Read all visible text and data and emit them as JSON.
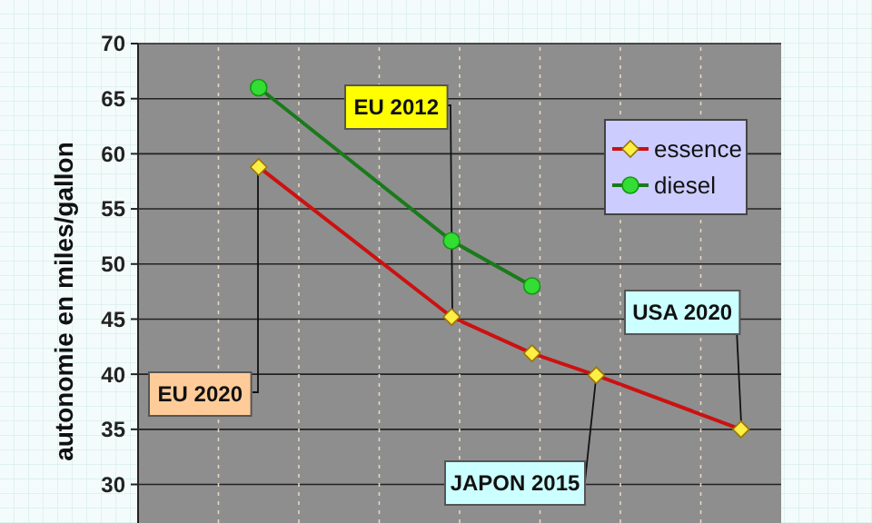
{
  "chart_data": {
    "type": "line",
    "ylabel": "autonomie en miles/gallon",
    "categories": [
      null,
      null,
      null,
      null,
      null,
      null,
      null,
      null,
      null,
      null,
      null,
      null,
      null,
      null,
      null,
      null,
      null,
      null,
      null,
      null,
      null,
      null,
      null,
      null,
      null,
      null,
      null,
      null,
      null,
      null,
      null,
      null,
      null,
      null,
      null,
      null,
      null,
      null,
      null,
      null
    ],
    "ylim": [
      26.5,
      70
    ],
    "yticks": [
      30,
      35,
      40,
      45,
      50,
      55,
      60,
      65,
      70
    ],
    "tick_labels": "y",
    "grid": true,
    "legend": "top right",
    "series": [
      {
        "name": "essence",
        "color": "#cc1111",
        "marker": "diamond",
        "values": [
          null,
          null,
          null,
          null,
          null,
          null,
          null,
          58.8,
          null,
          null,
          null,
          null,
          null,
          null,
          null,
          null,
          null,
          null,
          null,
          45.2,
          null,
          null,
          null,
          null,
          41.9,
          null,
          null,
          null,
          39.9,
          null,
          null,
          null,
          null,
          null,
          null,
          null,
          null,
          35.0,
          null,
          null
        ]
      },
      {
        "name": "diesel",
        "color": "#1a7a1a",
        "marker": "circle",
        "values": [
          null,
          null,
          null,
          null,
          null,
          null,
          null,
          66.0,
          null,
          null,
          null,
          null,
          null,
          null,
          null,
          null,
          null,
          null,
          null,
          52.1,
          null,
          null,
          null,
          null,
          48.0,
          null,
          null,
          null,
          null,
          null,
          null,
          null,
          null,
          null,
          null,
          null,
          null,
          null,
          null,
          null
        ]
      }
    ],
    "annotations": [
      "EU 2012",
      "EU 2020",
      "USA 2020",
      "JAPON 2015"
    ]
  }
}
